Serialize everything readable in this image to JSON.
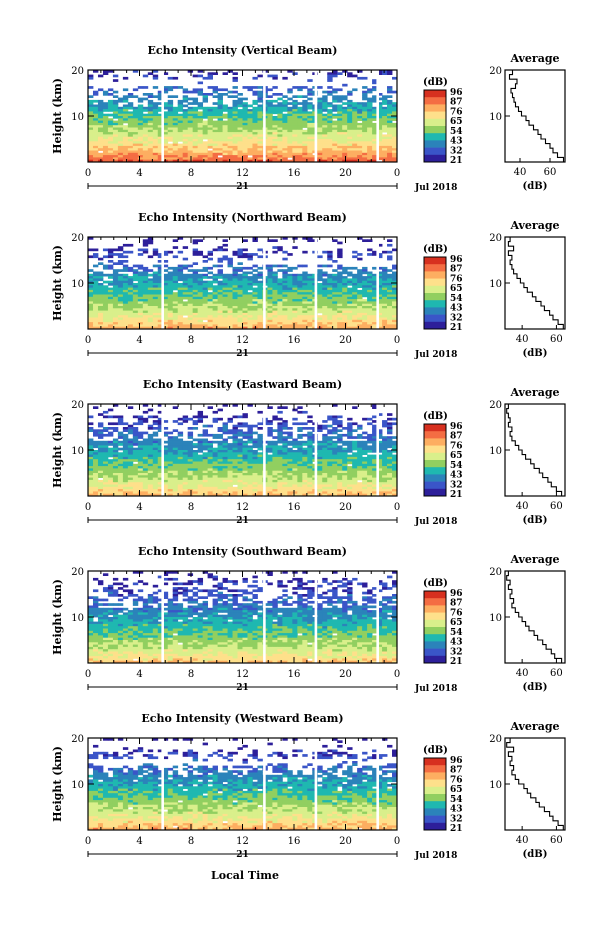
{
  "figure": {
    "xlabel_bottom": "Local Time",
    "colorbar_unit": "(dB)",
    "average_title": "Average",
    "average_xlabel": "(dB)",
    "colorbar_ticks": [
      "96",
      "87",
      "76",
      "65",
      "54",
      "43",
      "32",
      "21"
    ],
    "colorbar_colors": [
      "#d7301f",
      "#f46d43",
      "#fdae61",
      "#fee08b",
      "#d9ef8b",
      "#91cf60",
      "#1fb8b0",
      "#2b83ba",
      "#3a55c8",
      "#2d1f9a"
    ],
    "y_ticks": [
      "20",
      "10"
    ],
    "x_ticks": [
      "0",
      "4",
      "8",
      "12",
      "16",
      "20",
      "0"
    ],
    "date_day": "21",
    "date_label": "Jul 2018",
    "accent_colors": {
      "axis": "#000000",
      "gap": "#ffffff"
    }
  },
  "chart_data": [
    {
      "type": "heatmap",
      "title": "Echo Intensity (Vertical Beam)",
      "ylabel": "Height (km)",
      "xlim": [
        0,
        24
      ],
      "ylim": [
        0,
        20
      ],
      "colorbar_range_db": [
        21,
        96
      ],
      "data_gaps_hours": [
        5.8,
        13.7,
        17.7,
        22.5
      ],
      "surface_db": 90,
      "top_db": 25,
      "clear_bands_km": [
        [
          16.5,
          18.2
        ]
      ],
      "average": {
        "x_ticks": [
          "40",
          "60"
        ],
        "xlim": [
          30,
          70
        ],
        "height_km": [
          1,
          2,
          3,
          4,
          5,
          6,
          7,
          8,
          9,
          10,
          11,
          12,
          13,
          14,
          15,
          16,
          17,
          18,
          19,
          20
        ],
        "db": [
          69,
          65,
          62,
          60,
          57,
          54,
          52,
          49,
          46,
          44,
          41,
          39,
          37,
          36,
          35,
          34,
          37,
          38,
          33,
          35
        ]
      }
    },
    {
      "type": "heatmap",
      "title": "Echo Intensity (Northward Beam)",
      "ylabel": "Height (km)",
      "xlim": [
        0,
        24
      ],
      "ylim": [
        0,
        20
      ],
      "colorbar_range_db": [
        21,
        96
      ],
      "data_gaps_hours": [
        5.8,
        13.7,
        17.7,
        22.5
      ],
      "surface_db": 80,
      "top_db": 22,
      "clear_bands_km": [
        [
          17.6,
          19.2
        ],
        [
          13.8,
          15.4
        ]
      ],
      "average": {
        "x_ticks": [
          "40",
          "60"
        ],
        "xlim": [
          30,
          65
        ],
        "height_km": [
          1,
          2,
          3,
          4,
          5,
          6,
          7,
          8,
          9,
          10,
          11,
          12,
          13,
          14,
          15,
          16,
          17,
          18,
          19,
          20
        ],
        "db": [
          64,
          61,
          58,
          56,
          53,
          51,
          48,
          46,
          43,
          41,
          39,
          37,
          35,
          34,
          33,
          34,
          32,
          35,
          32,
          33
        ]
      }
    },
    {
      "type": "heatmap",
      "title": "Echo Intensity (Eastward Beam)",
      "ylabel": "Height (km)",
      "xlim": [
        0,
        24
      ],
      "ylim": [
        0,
        20
      ],
      "colorbar_range_db": [
        21,
        96
      ],
      "data_gaps_hours": [
        5.8,
        13.7,
        17.7,
        22.5
      ],
      "surface_db": 78,
      "top_db": 22,
      "clear_bands_km": [
        [
          17.6,
          19.2
        ]
      ],
      "average": {
        "x_ticks": [
          "40",
          "60"
        ],
        "xlim": [
          30,
          65
        ],
        "height_km": [
          1,
          2,
          3,
          4,
          5,
          6,
          7,
          8,
          9,
          10,
          11,
          12,
          13,
          14,
          15,
          16,
          17,
          18,
          19,
          20
        ],
        "db": [
          63,
          60,
          57,
          55,
          52,
          50,
          47,
          45,
          42,
          40,
          38,
          36,
          34,
          33,
          34,
          32,
          33,
          32,
          31,
          32
        ]
      }
    },
    {
      "type": "heatmap",
      "title": "Echo Intensity (Southward Beam)",
      "ylabel": "Height (km)",
      "xlim": [
        0,
        24
      ],
      "ylim": [
        0,
        20
      ],
      "colorbar_range_db": [
        21,
        96
      ],
      "data_gaps_hours": [
        5.8,
        13.7,
        17.7,
        22.5
      ],
      "surface_db": 76,
      "top_db": 22,
      "clear_bands_km": [
        [
          18.3,
          19.4
        ]
      ],
      "average": {
        "x_ticks": [
          "40",
          "60"
        ],
        "xlim": [
          30,
          65
        ],
        "height_km": [
          1,
          2,
          3,
          4,
          5,
          6,
          7,
          8,
          9,
          10,
          11,
          12,
          13,
          14,
          15,
          16,
          17,
          18,
          19,
          20
        ],
        "db": [
          63,
          59,
          57,
          54,
          52,
          49,
          47,
          44,
          42,
          40,
          38,
          36,
          34,
          35,
          33,
          34,
          32,
          33,
          31,
          32
        ]
      }
    },
    {
      "type": "heatmap",
      "title": "Echo Intensity (Westward Beam)",
      "ylabel": "Height (km)",
      "xlim": [
        0,
        24
      ],
      "ylim": [
        0,
        20
      ],
      "colorbar_range_db": [
        21,
        96
      ],
      "data_gaps_hours": [
        5.8,
        13.7,
        17.7,
        22.5
      ],
      "surface_db": 80,
      "top_db": 22,
      "clear_bands_km": [
        [
          17.6,
          19.4
        ],
        [
          14.0,
          15.4
        ]
      ],
      "average": {
        "x_ticks": [
          "40",
          "60"
        ],
        "xlim": [
          30,
          65
        ],
        "height_km": [
          1,
          2,
          3,
          4,
          5,
          6,
          7,
          8,
          9,
          10,
          11,
          12,
          13,
          14,
          15,
          16,
          17,
          18,
          19,
          20
        ],
        "db": [
          64,
          61,
          58,
          56,
          53,
          50,
          48,
          45,
          43,
          41,
          38,
          36,
          34,
          35,
          33,
          34,
          32,
          35,
          31,
          33
        ]
      }
    }
  ]
}
